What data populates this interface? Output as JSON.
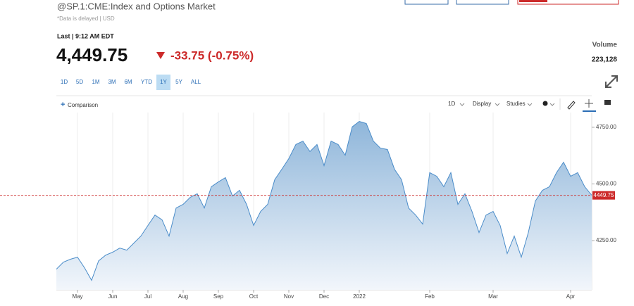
{
  "header": {
    "symbol": "@SP.1:CME:Index and Options Market",
    "note": "*Data is delayed | USD"
  },
  "quote": {
    "last_label": "Last | 9:12 AM EDT",
    "price": "4,449.75",
    "change": "-33.75 (-0.75%)"
  },
  "volume": {
    "label": "Volume",
    "value": "223,128"
  },
  "ranges": [
    "1D",
    "5D",
    "1M",
    "3M",
    "6M",
    "YTD",
    "1Y",
    "5Y",
    "ALL"
  ],
  "selected_range": 6,
  "toolbar": {
    "comparison": "Comparison",
    "interval": "1D",
    "display": "Display",
    "studies": "Studies"
  },
  "chart_data": {
    "type": "area",
    "color": "#4a8cc9",
    "categories": [
      null,
      null,
      null,
      "May",
      null,
      null,
      null,
      null,
      "Jun",
      null,
      null,
      null,
      null,
      "Jul",
      null,
      null,
      null,
      null,
      "Aug",
      null,
      null,
      null,
      null,
      "Sep",
      null,
      null,
      null,
      null,
      "Oct",
      null,
      null,
      null,
      null,
      "Nov",
      null,
      null,
      null,
      null,
      "Dec",
      null,
      null,
      null,
      null,
      "2022",
      null,
      null,
      null,
      null,
      null,
      null,
      null,
      null,
      null,
      "Feb",
      null,
      null,
      null,
      null,
      null,
      null,
      null,
      null,
      "Mar",
      null,
      null,
      null,
      null,
      null,
      null,
      null,
      null,
      null,
      null,
      "Apr",
      null,
      null,
      null
    ],
    "values": [
      4124,
      4155,
      4168,
      4177,
      4130,
      4075,
      4161,
      4186,
      4199,
      4217,
      4208,
      4239,
      4270,
      4317,
      4363,
      4342,
      4270,
      4394,
      4410,
      4441,
      4457,
      4394,
      4488,
      4509,
      4528,
      4447,
      4472,
      4410,
      4317,
      4379,
      4410,
      4519,
      4565,
      4612,
      4674,
      4689,
      4643,
      4674,
      4581,
      4689,
      4674,
      4627,
      4752,
      4776,
      4767,
      4689,
      4658,
      4652,
      4565,
      4519,
      4394,
      4363,
      4323,
      4550,
      4534,
      4488,
      4550,
      4410,
      4457,
      4379,
      4286,
      4363,
      4379,
      4317,
      4193,
      4270,
      4177,
      4286,
      4425,
      4472,
      4488,
      4550,
      4596,
      4534,
      4550,
      4488,
      4450
    ],
    "ylim": [
      4033,
      4815
    ],
    "yticks": [
      {
        "value": 4250,
        "label": "4250.00"
      },
      {
        "value": 4500,
        "label": "4500.00"
      },
      {
        "value": 4750,
        "label": "4750.00"
      }
    ],
    "last_line": 4449.75,
    "last_color": "#cc2a2a"
  }
}
